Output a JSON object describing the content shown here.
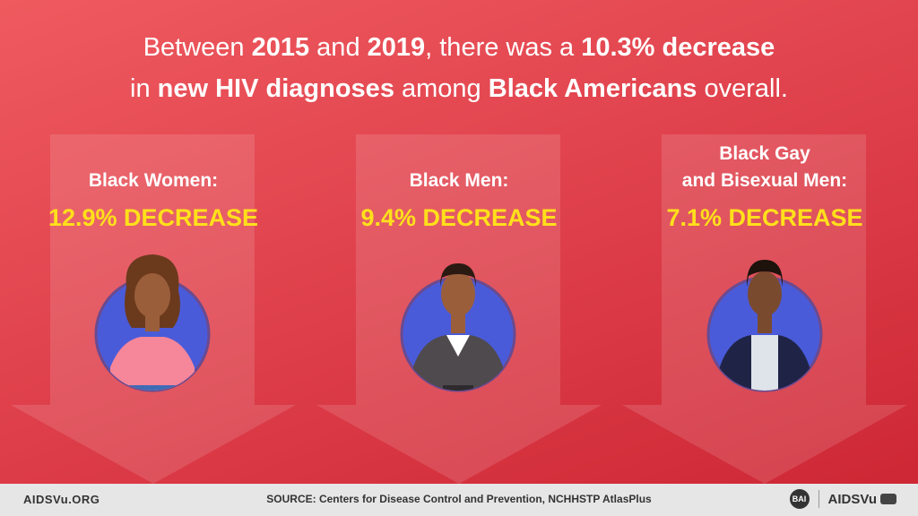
{
  "headline": {
    "line1_a": "Between ",
    "line1_b": "2015",
    "line1_c": " and ",
    "line1_d": "2019",
    "line1_e": ", there was a ",
    "line1_f": "10.3% decrease",
    "line2_a": "in ",
    "line2_b": "new HIV diagnoses",
    "line2_c": " among ",
    "line2_d": "Black Americans",
    "line2_e": " overall."
  },
  "groups": [
    {
      "label_lines": [
        "Black Women:"
      ],
      "stat": "12.9% DECREASE",
      "icon": "woman-avatar-icon"
    },
    {
      "label_lines": [
        "Black Men:"
      ],
      "stat": "9.4% DECREASE",
      "icon": "man-avatar-icon"
    },
    {
      "label_lines": [
        "Black Gay",
        "and Bisexual Men:"
      ],
      "stat": "7.1% DECREASE",
      "icon": "gay-bisexual-man-avatar-icon"
    }
  ],
  "footer": {
    "site": "AIDSVu.ORG",
    "source": "SOURCE: Centers for Disease Control and Prevention, NCHHSTP AtlasPlus",
    "bai_logo": "BAI",
    "brand": "AIDSVu"
  },
  "colors": {
    "background": "#e0424d",
    "stat_yellow": "#ffe01b",
    "circle": "#4a5bd9"
  }
}
